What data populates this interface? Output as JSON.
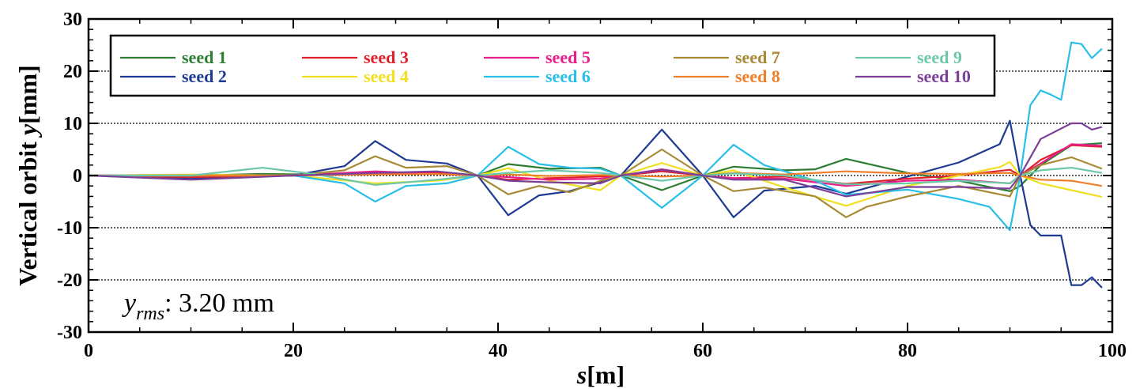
{
  "chart_data": {
    "type": "line",
    "title": "",
    "xlabel_italic": "s",
    "xlabel_rest": "[m]",
    "ylabel_main": "Vertical orbit ",
    "ylabel_italic": "y",
    "ylabel_rest": "[mm]",
    "xlim": [
      0,
      100
    ],
    "ylim": [
      -30,
      30
    ],
    "x_ticks": [
      0,
      20,
      40,
      60,
      80,
      100
    ],
    "y_ticks": [
      -30,
      -20,
      -10,
      0,
      10,
      20,
      30
    ],
    "grid": "horizontal dotted",
    "legend_position": "top",
    "annotation": {
      "symbol": "y",
      "subscript": "rms",
      "text": ": 3.20 mm"
    },
    "series": [
      {
        "name": "seed 1",
        "color": "#2e7d32",
        "x": [
          0,
          10,
          17,
          22,
          28,
          34,
          38,
          41,
          45,
          50,
          52,
          56,
          60,
          63,
          68,
          71,
          74,
          80,
          85,
          90,
          91,
          93,
          96,
          99
        ],
        "y": [
          0,
          0,
          0.3,
          0.2,
          0.3,
          0.5,
          0,
          2.2,
          1.3,
          1.5,
          0,
          -2.8,
          0,
          1.7,
          1,
          1.2,
          3.2,
          0.5,
          -1,
          -3,
          -2,
          2,
          5.8,
          6.2
        ]
      },
      {
        "name": "seed 2",
        "color": "#1f3a93",
        "x": [
          0,
          10,
          20,
          25,
          28,
          31,
          35,
          38,
          41,
          44,
          47,
          50,
          52,
          56,
          60,
          63,
          66,
          71,
          74,
          80,
          85,
          89,
          90,
          91,
          92,
          93,
          95,
          96,
          97,
          98,
          99
        ],
        "y": [
          0,
          -0.5,
          0,
          1.8,
          6.6,
          3,
          2.3,
          0,
          -7.6,
          -3.8,
          -3,
          -1.3,
          0,
          8.8,
          0,
          -8,
          -2.9,
          -2,
          -3.5,
          -0.2,
          2.5,
          6,
          10.5,
          0,
          -9.5,
          -11.5,
          -11.5,
          -21,
          -21,
          -19.5,
          -21.5
        ]
      },
      {
        "name": "seed 3",
        "color": "#e0202a",
        "x": [
          0,
          10,
          20,
          28,
          34,
          38,
          41,
          45,
          50,
          52,
          56,
          60,
          63,
          68,
          74,
          80,
          85,
          90,
          91,
          93,
          96,
          99
        ],
        "y": [
          0,
          -0.3,
          0,
          0.5,
          0.5,
          0,
          -0.8,
          -0.5,
          -0.2,
          0,
          0.8,
          0,
          -0.5,
          -0.2,
          -1.6,
          -0.6,
          0,
          1.1,
          0,
          3,
          5.8,
          5.5
        ]
      },
      {
        "name": "seed 4",
        "color": "#f0e020",
        "x": [
          0,
          10,
          20,
          28,
          34,
          38,
          41,
          45,
          50,
          52,
          56,
          60,
          63,
          68,
          74,
          80,
          85,
          89,
          90,
          91,
          93,
          96,
          99
        ],
        "y": [
          0,
          0.2,
          0,
          -1.5,
          -1,
          0,
          1.4,
          -1,
          -2.8,
          0,
          2.4,
          0,
          1,
          -2.3,
          -5.8,
          -2,
          0,
          1.6,
          2.6,
          0,
          -1.5,
          -2.8,
          -4.1
        ]
      },
      {
        "name": "seed 5",
        "color": "#e91e8c",
        "x": [
          0,
          10,
          20,
          28,
          34,
          38,
          41,
          45,
          50,
          52,
          56,
          60,
          63,
          68,
          74,
          80,
          85,
          90,
          91,
          93,
          96,
          99
        ],
        "y": [
          0,
          0,
          0,
          0.8,
          0.3,
          0,
          -0.3,
          -0.8,
          -0.6,
          0,
          1.2,
          0,
          -0.5,
          -0.6,
          -2,
          -1,
          -0.8,
          -1.5,
          0,
          2.3,
          6,
          5.7
        ]
      },
      {
        "name": "seed 6",
        "color": "#29bfe8",
        "x": [
          0,
          10,
          20,
          25,
          28,
          31,
          35,
          38,
          41,
          44,
          47,
          50,
          52,
          56,
          60,
          63,
          66,
          71,
          74,
          80,
          85,
          88,
          90,
          91,
          92,
          93,
          94,
          95,
          96,
          97,
          98,
          99
        ],
        "y": [
          0,
          0,
          0,
          -1.5,
          -5,
          -2,
          -1.5,
          0,
          5.5,
          2.2,
          1.5,
          1.3,
          0,
          -6.2,
          0,
          5.9,
          2,
          -1,
          -3.7,
          -2.7,
          -4.5,
          -6,
          -10.5,
          0,
          13.5,
          16.3,
          15.5,
          14.5,
          25.5,
          25.2,
          22.5,
          24.3
        ]
      },
      {
        "name": "seed 7",
        "color": "#a88a35",
        "x": [
          0,
          10,
          20,
          25,
          28,
          31,
          35,
          38,
          41,
          44,
          47,
          50,
          52,
          56,
          60,
          63,
          66,
          71,
          74,
          76,
          80,
          85,
          90,
          91,
          93,
          96,
          99
        ],
        "y": [
          0,
          0,
          0,
          1,
          3.7,
          1.5,
          1.8,
          0,
          -3.6,
          -2,
          -3.2,
          -1,
          0,
          5,
          0,
          -3,
          -2.3,
          -4,
          -8,
          -6,
          -4,
          -2,
          -4,
          0,
          2,
          3.5,
          1.3
        ]
      },
      {
        "name": "seed 8",
        "color": "#f07f2a",
        "x": [
          0,
          10,
          20,
          28,
          34,
          38,
          41,
          45,
          50,
          52,
          56,
          60,
          63,
          68,
          74,
          80,
          85,
          90,
          91,
          93,
          96,
          99
        ],
        "y": [
          0,
          0,
          0,
          0.2,
          0.3,
          0,
          0.2,
          -0.1,
          0.1,
          0,
          -0.2,
          0,
          0.5,
          0.2,
          0.8,
          0.4,
          0.3,
          0.5,
          0,
          -0.8,
          -1,
          -2
        ]
      },
      {
        "name": "seed 9",
        "color": "#6cc8a8",
        "x": [
          0,
          10,
          17,
          22,
          28,
          34,
          38,
          41,
          45,
          50,
          52,
          56,
          60,
          63,
          68,
          74,
          80,
          85,
          90,
          91,
          93,
          96,
          99
        ],
        "y": [
          0,
          0,
          1.5,
          0.3,
          -1.8,
          -0.8,
          0,
          0.5,
          1,
          0.5,
          0,
          -1,
          0,
          0.4,
          0,
          -1.7,
          -1.5,
          -1,
          -1.5,
          0,
          1,
          1.5,
          0.5
        ]
      },
      {
        "name": "seed 10",
        "color": "#7b3f98",
        "x": [
          0,
          10,
          20,
          28,
          34,
          38,
          41,
          45,
          50,
          52,
          56,
          60,
          63,
          68,
          74,
          80,
          85,
          90,
          91,
          93,
          96,
          97,
          98,
          99
        ],
        "y": [
          0,
          -0.8,
          0,
          0.5,
          0.8,
          0,
          -1,
          -1.3,
          -1.5,
          0,
          1.1,
          0,
          -0.8,
          -0.8,
          -4,
          -2.2,
          -2.2,
          -2.5,
          0,
          7,
          10,
          10,
          8.8,
          9.3
        ]
      }
    ]
  }
}
